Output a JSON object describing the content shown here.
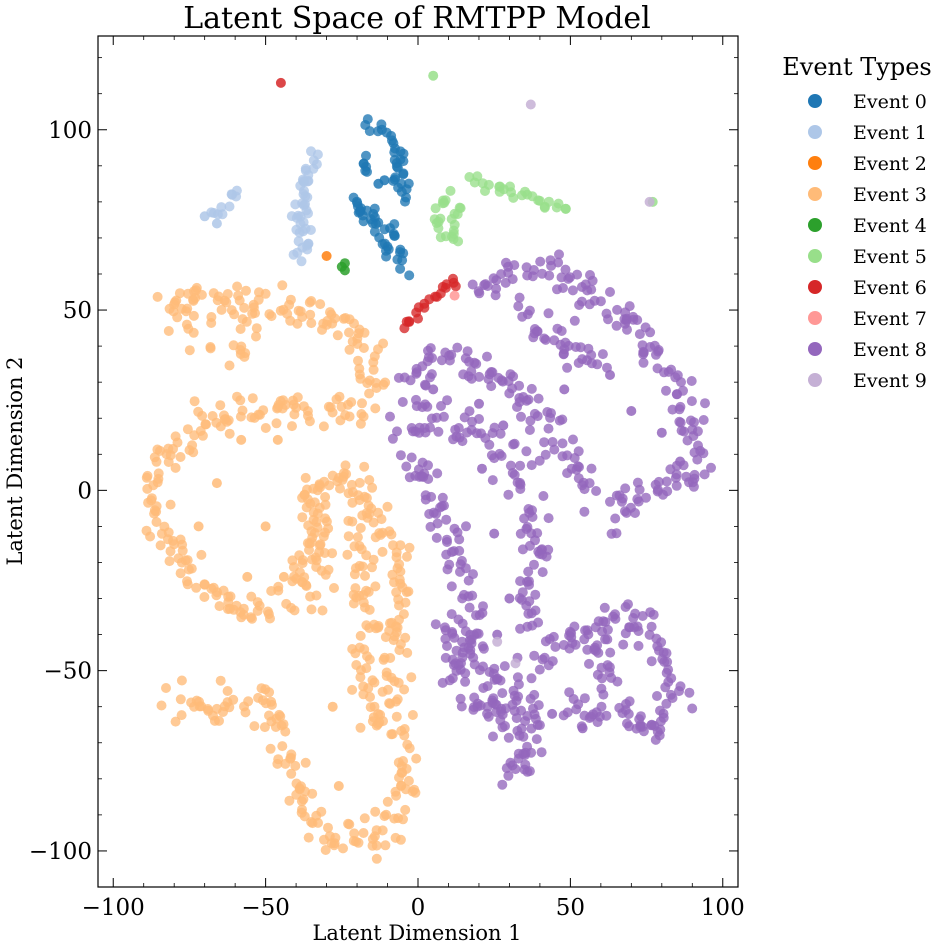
{
  "chart_data": {
    "type": "scatter",
    "title": "Latent Space of RMTPP Model",
    "xlabel": "Latent Dimension 1",
    "ylabel": "Latent Dimension 2",
    "xlim": [
      -105,
      105
    ],
    "ylim": [
      -110,
      126
    ],
    "xticks": [
      -100,
      -50,
      0,
      50,
      100
    ],
    "yticks": [
      -100,
      -50,
      0,
      50,
      100
    ],
    "xtick_labels": [
      "−100",
      "−50",
      "0",
      "50",
      "100"
    ],
    "ytick_labels": [
      "−100",
      "−50",
      "0",
      "50",
      "100"
    ],
    "grid": false,
    "legend": {
      "title": "Event Types",
      "placement": "outside-right-top"
    },
    "series": [
      {
        "name": "Event 0",
        "color": "#1f77b4",
        "paths": [
          [
            [
              -17,
              102
            ],
            [
              -10,
              99
            ],
            [
              -6,
              93
            ],
            [
              -5,
              86
            ],
            [
              -4,
              79
            ]
          ],
          [
            [
              -18,
              93
            ],
            [
              -17,
              88
            ],
            [
              -16,
              86
            ]
          ],
          [
            [
              -8,
              92
            ],
            [
              -7,
              87
            ],
            [
              -6,
              82
            ]
          ],
          [
            [
              -21,
              82
            ],
            [
              -17,
              77
            ],
            [
              -12,
              74
            ],
            [
              -9,
              72
            ],
            [
              -6,
              68
            ],
            [
              -5,
              63
            ],
            [
              -5,
              59
            ]
          ],
          [
            [
              -20,
              79
            ],
            [
              -15,
              73
            ],
            [
              -11,
              68
            ],
            [
              -9,
              63
            ]
          ]
        ],
        "points": [
          [
            -11,
            86
          ],
          [
            -13,
            85
          ]
        ]
      },
      {
        "name": "Event 1",
        "color": "#aec7e8",
        "paths": [
          [
            [
              -33,
              94
            ],
            [
              -36,
              86
            ],
            [
              -39,
              80
            ],
            [
              -40,
              73
            ],
            [
              -39,
              67
            ],
            [
              -38,
              62
            ]
          ],
          [
            [
              -38,
              88
            ],
            [
              -37,
              80
            ],
            [
              -36,
              72
            ],
            [
              -36,
              66
            ]
          ],
          [
            [
              -60,
              83
            ],
            [
              -62,
              80
            ],
            [
              -65,
              77
            ],
            [
              -68,
              75
            ]
          ]
        ],
        "points": [
          [
            -61,
            82
          ],
          [
            -66,
            74
          ],
          [
            -70,
            76
          ]
        ]
      },
      {
        "name": "Event 2",
        "color": "#ff7f0e",
        "paths": [],
        "points": [
          [
            -30,
            65
          ]
        ]
      },
      {
        "name": "Event 3",
        "color": "#ffbb78",
        "paths": [
          [
            [
              -80,
              48
            ],
            [
              -77,
              54
            ],
            [
              -70,
              54
            ],
            [
              -60,
              52
            ],
            [
              -50,
              52
            ],
            [
              -40,
              50
            ],
            [
              -30,
              49
            ],
            [
              -22,
              47
            ],
            [
              -18,
              42
            ],
            [
              -16,
              35
            ],
            [
              -16,
              28
            ],
            [
              -20,
              24
            ],
            [
              -30,
              22
            ],
            [
              -40,
              22
            ],
            [
              -50,
              21
            ],
            [
              -60,
              22
            ],
            [
              -68,
              20
            ],
            [
              -74,
              16
            ],
            [
              -78,
              12
            ],
            [
              -84,
              8
            ],
            [
              -88,
              0
            ],
            [
              -86,
              -9
            ],
            [
              -82,
              -14
            ],
            [
              -78,
              -20
            ],
            [
              -72,
              -26
            ],
            [
              -64,
              -31
            ],
            [
              -58,
              -33
            ],
            [
              -48,
              -33
            ],
            [
              -42,
              -30
            ],
            [
              -38,
              -20
            ],
            [
              -36,
              -8
            ],
            [
              -34,
              0
            ],
            [
              -30,
              2
            ],
            [
              -24,
              3
            ],
            [
              -20,
              1
            ],
            [
              -16,
              -4
            ],
            [
              -12,
              -10
            ],
            [
              -10,
              -16
            ],
            [
              -6,
              -22
            ],
            [
              -6,
              -32
            ],
            [
              -8,
              -44
            ],
            [
              -9,
              -56
            ],
            [
              -8,
              -68
            ],
            [
              -5,
              -76
            ],
            [
              -2,
              -80
            ],
            [
              -4,
              -84
            ],
            [
              -7,
              -90
            ],
            [
              -12,
              -95
            ],
            [
              -18,
              -98
            ],
            [
              -25,
              -97
            ],
            [
              -33,
              -93
            ],
            [
              -38,
              -86
            ],
            [
              -41,
              -78
            ],
            [
              -43,
              -70
            ],
            [
              -48,
              -63
            ],
            [
              -54,
              -59
            ],
            [
              -60,
              -60
            ],
            [
              -68,
              -62
            ],
            [
              -76,
              -60
            ],
            [
              -81,
              -57
            ]
          ],
          [
            [
              -36,
              0
            ],
            [
              -34,
              -10
            ],
            [
              -32,
              -20
            ],
            [
              -30,
              -28
            ]
          ],
          [
            [
              -22,
              -6
            ],
            [
              -20,
              -16
            ],
            [
              -18,
              -26
            ],
            [
              -17,
              -36
            ],
            [
              -18,
              -46
            ],
            [
              -16,
              -56
            ],
            [
              -13,
              -64
            ]
          ],
          [
            [
              -58,
              45
            ],
            [
              -57,
              40
            ],
            [
              -57,
              35
            ]
          ],
          [
            [
              -75,
              50
            ],
            [
              -73,
              45
            ],
            [
              -70,
              42
            ]
          ]
        ],
        "points": [
          [
            -26,
            -82
          ],
          [
            -44,
            -24
          ],
          [
            -72,
            -10
          ],
          [
            -66,
            2
          ],
          [
            -58,
            14
          ],
          [
            -46,
            14
          ],
          [
            -50,
            -10
          ],
          [
            -56,
            -24
          ],
          [
            -28,
            -60
          ]
        ]
      },
      {
        "name": "Event 4",
        "color": "#2ca02c",
        "paths": [],
        "points": [
          [
            -25,
            62
          ],
          [
            -24,
            61
          ],
          [
            -24,
            63
          ]
        ]
      },
      {
        "name": "Event 5",
        "color": "#98df8a",
        "paths": [
          [
            [
              10,
              82
            ],
            [
              6,
              78
            ],
            [
              7,
              72
            ],
            [
              12,
              70
            ],
            [
              16,
              69
            ]
          ],
          [
            [
              14,
              79
            ],
            [
              11,
              75
            ],
            [
              12,
              71
            ]
          ],
          [
            [
              18,
              86
            ],
            [
              25,
              84
            ],
            [
              32,
              82
            ],
            [
              40,
              81
            ],
            [
              50,
              79
            ]
          ]
        ],
        "points": [
          [
            5,
            115
          ],
          [
            77,
            80
          ]
        ]
      },
      {
        "name": "Event 6",
        "color": "#d62728",
        "paths": [
          [
            [
              -5,
              46
            ],
            [
              0,
              49
            ],
            [
              5,
              53
            ],
            [
              9,
              56
            ],
            [
              12,
              58
            ],
            [
              13,
              57
            ]
          ]
        ],
        "points": [
          [
            -45,
            113
          ]
        ]
      },
      {
        "name": "Event 7",
        "color": "#ff9896",
        "paths": [],
        "points": [
          [
            12,
            54
          ]
        ]
      },
      {
        "name": "Event 8",
        "color": "#9467bd",
        "paths": [
          [
            [
              21,
              53
            ],
            [
              26,
              58
            ],
            [
              31,
              61
            ],
            [
              33,
              62
            ]
          ],
          [
            [
              36,
              60
            ],
            [
              42,
              62
            ],
            [
              52,
              58
            ],
            [
              62,
              53
            ],
            [
              70,
              46
            ],
            [
              78,
              38
            ],
            [
              85,
              28
            ],
            [
              91,
              18
            ],
            [
              92,
              10
            ],
            [
              90,
              4
            ],
            [
              82,
              2
            ],
            [
              74,
              0
            ],
            [
              68,
              -4
            ],
            [
              66,
              -10
            ]
          ],
          [
            [
              33,
              48
            ],
            [
              40,
              45
            ],
            [
              50,
              40
            ],
            [
              58,
              36
            ],
            [
              62,
              34
            ]
          ],
          [
            [
              -2,
              35
            ],
            [
              10,
              36
            ],
            [
              20,
              34
            ],
            [
              28,
              30
            ],
            [
              35,
              26
            ],
            [
              40,
              20
            ],
            [
              46,
              14
            ],
            [
              50,
              8
            ],
            [
              56,
              2
            ],
            [
              60,
              -2
            ]
          ],
          [
            [
              -1,
              20
            ],
            [
              -3,
              10
            ],
            [
              1,
              4
            ],
            [
              4,
              0
            ],
            [
              8,
              -8
            ],
            [
              11,
              -16
            ],
            [
              14,
              -22
            ],
            [
              17,
              -30
            ],
            [
              18,
              -40
            ],
            [
              13,
              -50
            ],
            [
              10,
              -54
            ]
          ],
          [
            [
              -2,
              30
            ],
            [
              3,
              22
            ],
            [
              10,
              18
            ],
            [
              18,
              16
            ],
            [
              26,
              12
            ],
            [
              32,
              6
            ],
            [
              36,
              -2
            ],
            [
              38,
              -10
            ],
            [
              38,
              -20
            ],
            [
              36,
              -30
            ],
            [
              36,
              -40
            ]
          ],
          [
            [
              8,
              -36
            ],
            [
              14,
              -44
            ],
            [
              20,
              -50
            ],
            [
              28,
              -54
            ],
            [
              34,
              -58
            ],
            [
              38,
              -64
            ],
            [
              37,
              -72
            ],
            [
              33,
              -78
            ],
            [
              28,
              -78
            ]
          ],
          [
            [
              22,
              -60
            ],
            [
              30,
              -66
            ],
            [
              36,
              -68
            ]
          ],
          [
            [
              38,
              -50
            ],
            [
              44,
              -44
            ],
            [
              50,
              -40
            ],
            [
              56,
              -40
            ],
            [
              60,
              -46
            ],
            [
              62,
              -52
            ],
            [
              64,
              -58
            ],
            [
              66,
              -64
            ],
            [
              72,
              -66
            ],
            [
              80,
              -64
            ],
            [
              84,
              -56
            ],
            [
              82,
              -48
            ],
            [
              76,
              -40
            ],
            [
              70,
              -34
            ],
            [
              64,
              -36
            ],
            [
              60,
              -42
            ]
          ],
          [
            [
              50,
              -58
            ],
            [
              56,
              -62
            ],
            [
              62,
              -64
            ]
          ],
          [
            [
              16,
              -58
            ],
            [
              24,
              -62
            ],
            [
              30,
              -62
            ]
          ]
        ],
        "points": [
          [
            63,
            32
          ],
          [
            21,
            6
          ],
          [
            5,
            28
          ],
          [
            30,
            -30
          ],
          [
            26,
            -40
          ],
          [
            54,
            -66
          ],
          [
            44,
            -62
          ],
          [
            20,
            24
          ],
          [
            28,
            18
          ],
          [
            70,
            22
          ],
          [
            80,
            16
          ],
          [
            86,
            8
          ],
          [
            48,
            28
          ],
          [
            25,
            -12
          ]
        ]
      },
      {
        "name": "Event 9",
        "color": "#c5b0d5",
        "paths": [],
        "points": [
          [
            37,
            107
          ],
          [
            76,
            80
          ],
          [
            26,
            -42
          ],
          [
            32,
            -48
          ]
        ]
      }
    ]
  }
}
